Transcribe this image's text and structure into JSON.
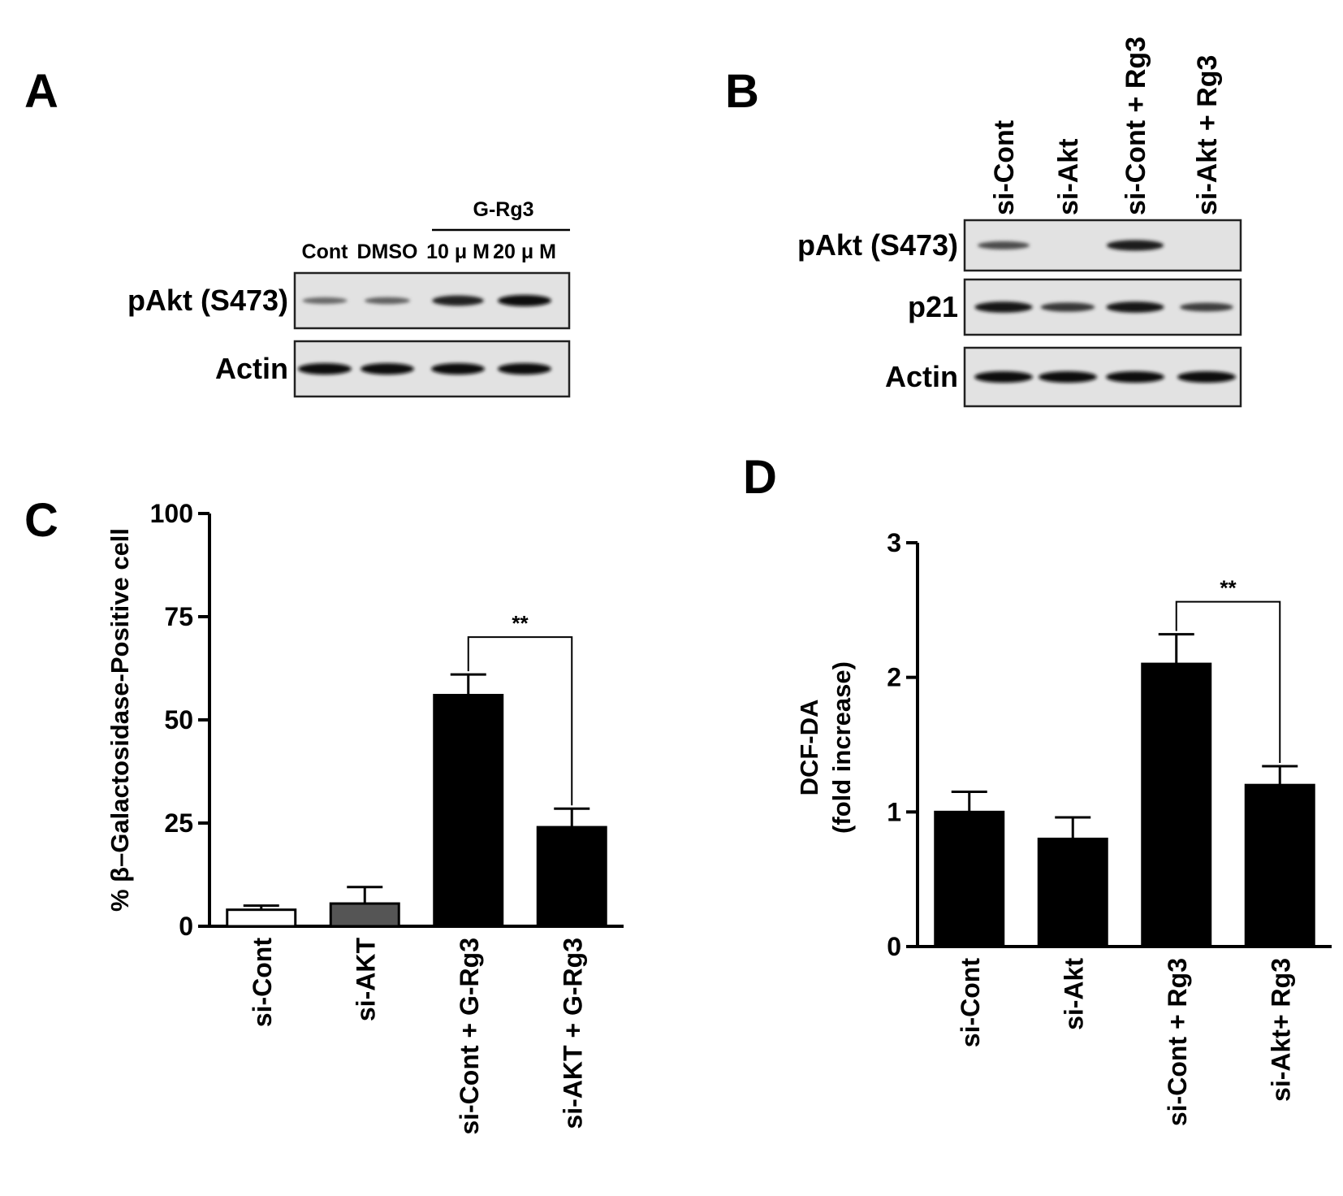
{
  "panels": {
    "a": {
      "letter": "A",
      "group_label": "G-Rg3",
      "lanes": [
        "Cont",
        "DMSO",
        "10 μ M",
        "20 μ M"
      ],
      "blots": [
        {
          "label": "pAkt (S473)",
          "band_intensity": [
            0.35,
            0.4,
            0.85,
            1.0
          ]
        },
        {
          "label": "Actin",
          "band_intensity": [
            1.0,
            1.0,
            1.0,
            1.0
          ]
        }
      ]
    },
    "b": {
      "letter": "B",
      "lanes": [
        "si-Cont",
        "si-Akt",
        "si-Cont + Rg3",
        "si-Akt + Rg3"
      ],
      "blots": [
        {
          "label": "pAkt (S473)",
          "band_intensity": [
            0.55,
            0.0,
            0.9,
            0.0
          ]
        },
        {
          "label": "p21",
          "band_intensity": [
            0.95,
            0.7,
            0.95,
            0.65
          ]
        },
        {
          "label": "Actin",
          "band_intensity": [
            1.0,
            1.0,
            1.0,
            1.0
          ]
        }
      ]
    },
    "c": {
      "letter": "C"
    },
    "d": {
      "letter": "D"
    }
  },
  "chart_data": [
    {
      "type": "bar",
      "panel": "C",
      "categories": [
        "si-Cont",
        "si-AKT",
        "si-Cont + G-Rg3",
        "si-AKT + G-Rg3"
      ],
      "values": [
        4,
        5.5,
        56,
        24
      ],
      "errors": [
        1,
        4,
        5,
        4.5
      ],
      "bar_colors": [
        "#ffffff",
        "#555555",
        "#000000",
        "#000000"
      ],
      "ylabel": "% β–Galactosidase-Positive cell",
      "ylim": [
        0,
        100
      ],
      "yticks": [
        0,
        25,
        50,
        75,
        100
      ],
      "significance": {
        "between": [
          2,
          3
        ],
        "label": "**"
      }
    },
    {
      "type": "bar",
      "panel": "D",
      "categories": [
        "si-Cont",
        "si-Akt",
        "si-Cont + Rg3",
        "si-Akt+ Rg3"
      ],
      "values": [
        1.0,
        0.8,
        2.1,
        1.2
      ],
      "errors": [
        0.15,
        0.16,
        0.22,
        0.14
      ],
      "bar_colors": [
        "#000000",
        "#000000",
        "#000000",
        "#000000"
      ],
      "ylabel": [
        "DCF-DA",
        "(fold increase)"
      ],
      "ylim": [
        0,
        3
      ],
      "yticks": [
        0,
        1,
        2,
        3
      ],
      "significance": {
        "between": [
          2,
          3
        ],
        "label": "**"
      }
    }
  ]
}
